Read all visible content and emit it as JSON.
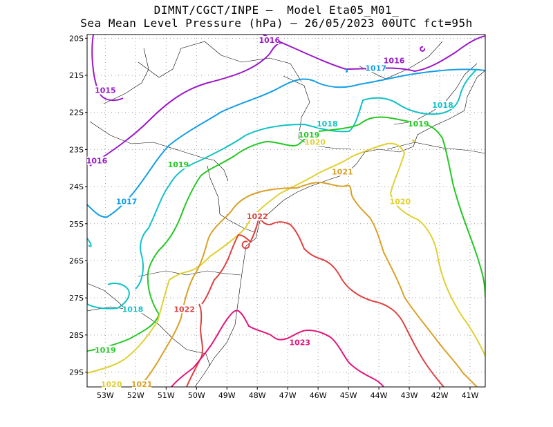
{
  "header": {
    "line1": "DIMNT/CGCT/INPE –  Model Eta05_M01_",
    "line2": "Sea Mean Level Pressure (hPa) – 26/05/2023 00UTC fct=95h"
  },
  "chart_data": {
    "type": "contour-map",
    "title": "DIMNT/CGCT/INPE –  Model Eta05_M01_",
    "subtitle": "Sea Mean Level Pressure (hPa) – 26/05/2023 00UTC fct=95h",
    "variable": "Sea Mean Level Pressure",
    "units": "hPa",
    "run": "26/05/2023 00UTC",
    "forecast": "fct=95h",
    "lon_range": [
      -53.6,
      -40.5
    ],
    "lat_range": [
      -29.4,
      -19.9
    ],
    "x_ticks": [
      "53W",
      "52W",
      "51W",
      "50W",
      "49W",
      "48W",
      "47W",
      "46W",
      "45W",
      "44W",
      "43W",
      "42W",
      "41W"
    ],
    "y_ticks": [
      "20S",
      "21S",
      "22S",
      "23S",
      "24S",
      "25S",
      "26S",
      "27S",
      "28S",
      "29S"
    ],
    "grid": true,
    "contour_levels": [
      {
        "level": 1015,
        "color": "#9a18c8"
      },
      {
        "level": 1016,
        "color": "#9a18c8"
      },
      {
        "level": 1017,
        "color": "#139ee6"
      },
      {
        "level": 1018,
        "color": "#11c2c6"
      },
      {
        "level": 1019,
        "color": "#22c822"
      },
      {
        "level": 1020,
        "color": "#e0d030"
      },
      {
        "level": 1021,
        "color": "#daa026"
      },
      {
        "level": 1022,
        "color": "#e04040"
      },
      {
        "level": 1023,
        "color": "#e2147a"
      }
    ],
    "contour_labels": [
      {
        "text": "1016",
        "lon": -47.6,
        "lat": -19.9,
        "color": "#9a18c8"
      },
      {
        "text": "1016",
        "lon": -43.5,
        "lat": -20.6,
        "color": "#9a18c8"
      },
      {
        "text": "1015",
        "lon": -53.0,
        "lat": -21.4,
        "color": "#9a18c8"
      },
      {
        "text": "1016",
        "lon": -53.5,
        "lat": -23.3,
        "color": "#9a18c8"
      },
      {
        "text": "1017",
        "lon": -44.1,
        "lat": -20.8,
        "color": "#139ee6"
      },
      {
        "text": "1017",
        "lon": -52.3,
        "lat": -24.4,
        "color": "#139ee6"
      },
      {
        "text": "1018",
        "lon": -41.9,
        "lat": -21.8,
        "color": "#11c2c6"
      },
      {
        "text": "1018",
        "lon": -45.7,
        "lat": -22.3,
        "color": "#11c2c6"
      },
      {
        "text": "1018",
        "lon": -52.1,
        "lat": -27.3,
        "color": "#11c2c6"
      },
      {
        "text": "1019",
        "lon": -42.7,
        "lat": -22.3,
        "color": "#22c822"
      },
      {
        "text": "1019",
        "lon": -46.3,
        "lat": -22.6,
        "color": "#22c822"
      },
      {
        "text": "1019",
        "lon": -50.6,
        "lat": -23.4,
        "color": "#22c822"
      },
      {
        "text": "1019",
        "lon": -53.0,
        "lat": -28.4,
        "color": "#22c822"
      },
      {
        "text": "1020",
        "lon": -46.1,
        "lat": -22.8,
        "color": "#e0d030"
      },
      {
        "text": "1020",
        "lon": -43.3,
        "lat": -24.4,
        "color": "#e0d030"
      },
      {
        "text": "1020",
        "lon": -52.8,
        "lat": -29.6,
        "color": "#e0d030"
      },
      {
        "text": "1021",
        "lon": -45.2,
        "lat": -23.6,
        "color": "#daa026"
      },
      {
        "text": "1021",
        "lon": -51.8,
        "lat": -29.9,
        "color": "#daa026"
      },
      {
        "text": "1022",
        "lon": -48.0,
        "lat": -24.8,
        "color": "#e04040"
      },
      {
        "text": "1022",
        "lon": -50.4,
        "lat": -27.3,
        "color": "#e04040"
      },
      {
        "text": "1023",
        "lon": -46.6,
        "lat": -28.2,
        "color": "#e2147a"
      }
    ]
  }
}
